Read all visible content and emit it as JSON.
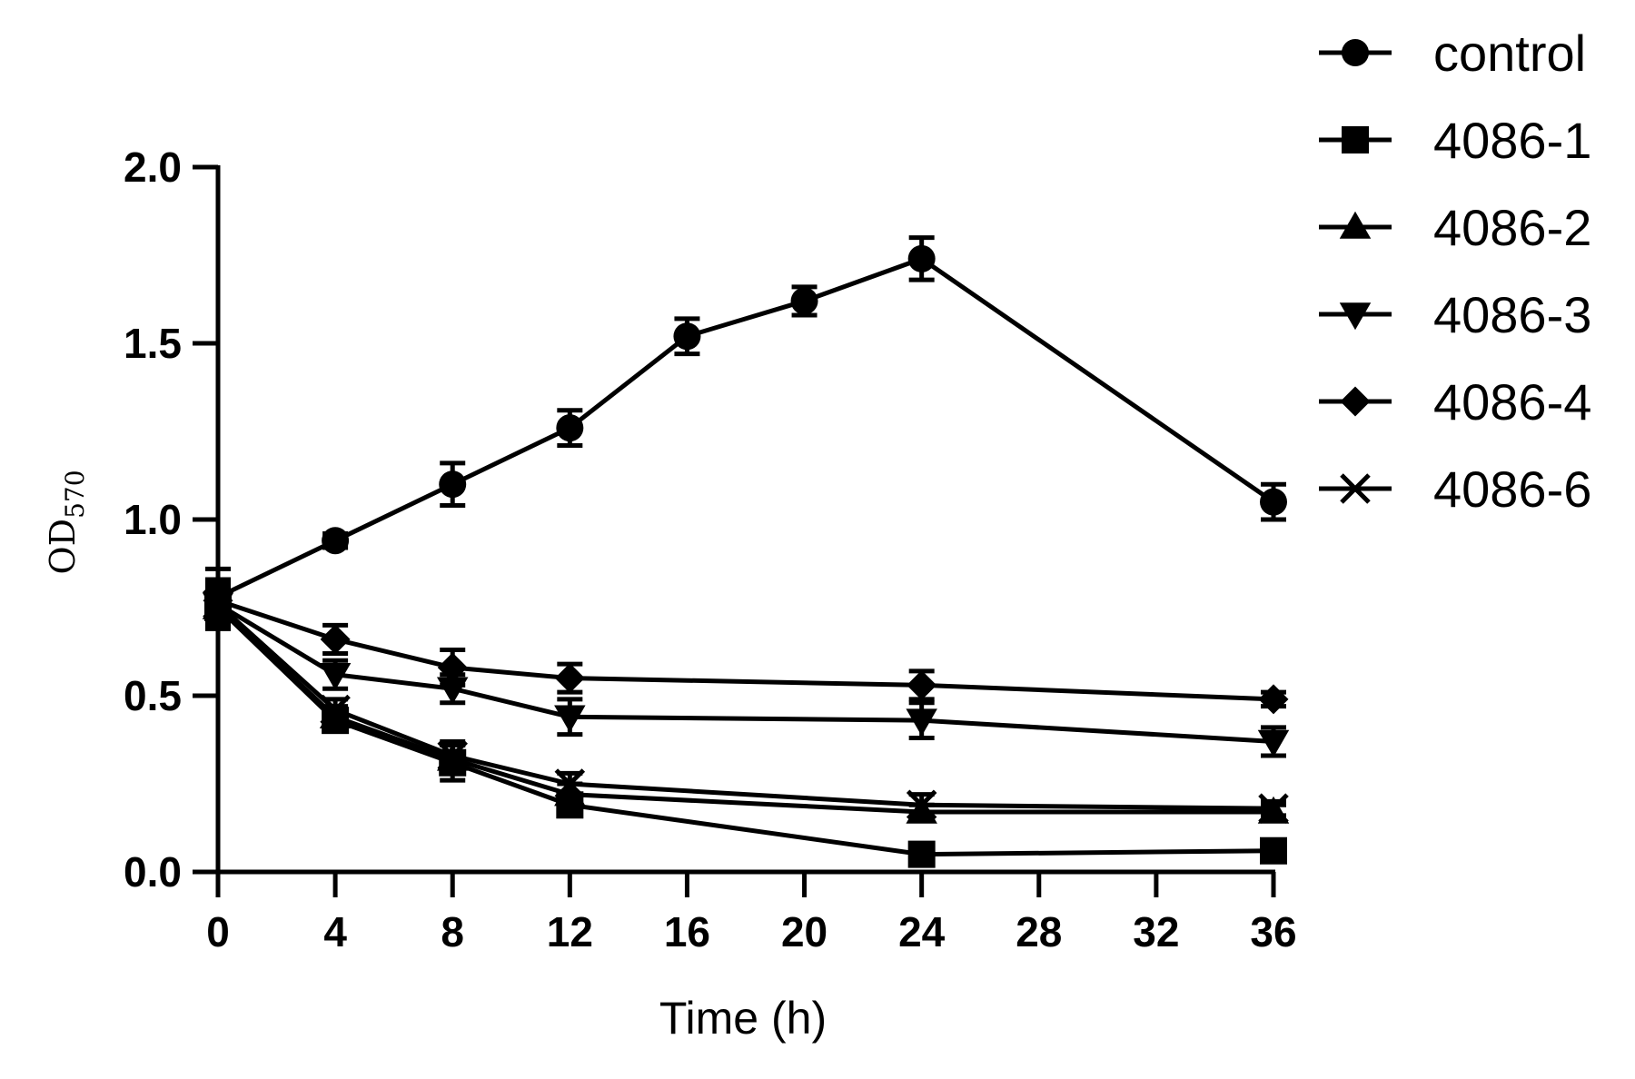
{
  "chart_data": {
    "type": "line",
    "title": "",
    "xlabel": "Time (h)",
    "ylabel_main": "OD",
    "ylabel_sub": "570",
    "xlim": [
      0,
      36
    ],
    "ylim": [
      0,
      2.0
    ],
    "xticks": [
      0,
      4,
      8,
      12,
      16,
      20,
      24,
      28,
      32,
      36
    ],
    "xtick_labels": [
      "0",
      "4",
      "8",
      "12",
      "16",
      "20",
      "24",
      "28",
      "32",
      "36"
    ],
    "yticks": [
      0,
      0.5,
      1.0,
      1.5,
      2.0
    ],
    "ytick_labels": [
      "0.0",
      "0.5",
      "1.0",
      "1.5",
      "2.0"
    ],
    "grid": false,
    "legend_position": "top-right",
    "series": [
      {
        "name": "control",
        "marker": "circle",
        "x": [
          0,
          4,
          8,
          12,
          16,
          20,
          24,
          36
        ],
        "y": [
          0.78,
          0.94,
          1.1,
          1.26,
          1.52,
          1.62,
          1.74,
          1.05
        ],
        "err": [
          0.08,
          0.02,
          0.06,
          0.05,
          0.05,
          0.04,
          0.06,
          0.05
        ]
      },
      {
        "name": "4086-1",
        "marker": "square",
        "x": [
          0,
          4,
          8,
          12,
          24,
          36
        ],
        "y": [
          0.75,
          0.43,
          0.31,
          0.19,
          0.05,
          0.06
        ],
        "err": [
          0.06,
          0.03,
          0.05,
          0.03,
          0.03,
          0.03
        ]
      },
      {
        "name": "4086-2",
        "marker": "triangle-up",
        "x": [
          0,
          4,
          8,
          12,
          24,
          36
        ],
        "y": [
          0.75,
          0.44,
          0.32,
          0.22,
          0.17,
          0.17
        ],
        "err": [
          0.05,
          0.03,
          0.04,
          0.03,
          0.02,
          0.02
        ]
      },
      {
        "name": "4086-3",
        "marker": "triangle-down",
        "x": [
          0,
          4,
          8,
          12,
          24,
          36
        ],
        "y": [
          0.76,
          0.56,
          0.52,
          0.44,
          0.43,
          0.37
        ],
        "err": [
          0.07,
          0.04,
          0.04,
          0.05,
          0.05,
          0.04
        ]
      },
      {
        "name": "4086-4",
        "marker": "diamond",
        "x": [
          0,
          4,
          8,
          12,
          24,
          36
        ],
        "y": [
          0.77,
          0.66,
          0.58,
          0.55,
          0.53,
          0.49
        ],
        "err": [
          0.05,
          0.04,
          0.05,
          0.04,
          0.04,
          0.02
        ]
      },
      {
        "name": "4086-6",
        "marker": "x",
        "x": [
          0,
          4,
          8,
          12,
          24,
          36
        ],
        "y": [
          0.76,
          0.46,
          0.33,
          0.25,
          0.19,
          0.18
        ],
        "err": [
          0.05,
          0.03,
          0.04,
          0.03,
          0.03,
          0.02
        ]
      }
    ]
  }
}
